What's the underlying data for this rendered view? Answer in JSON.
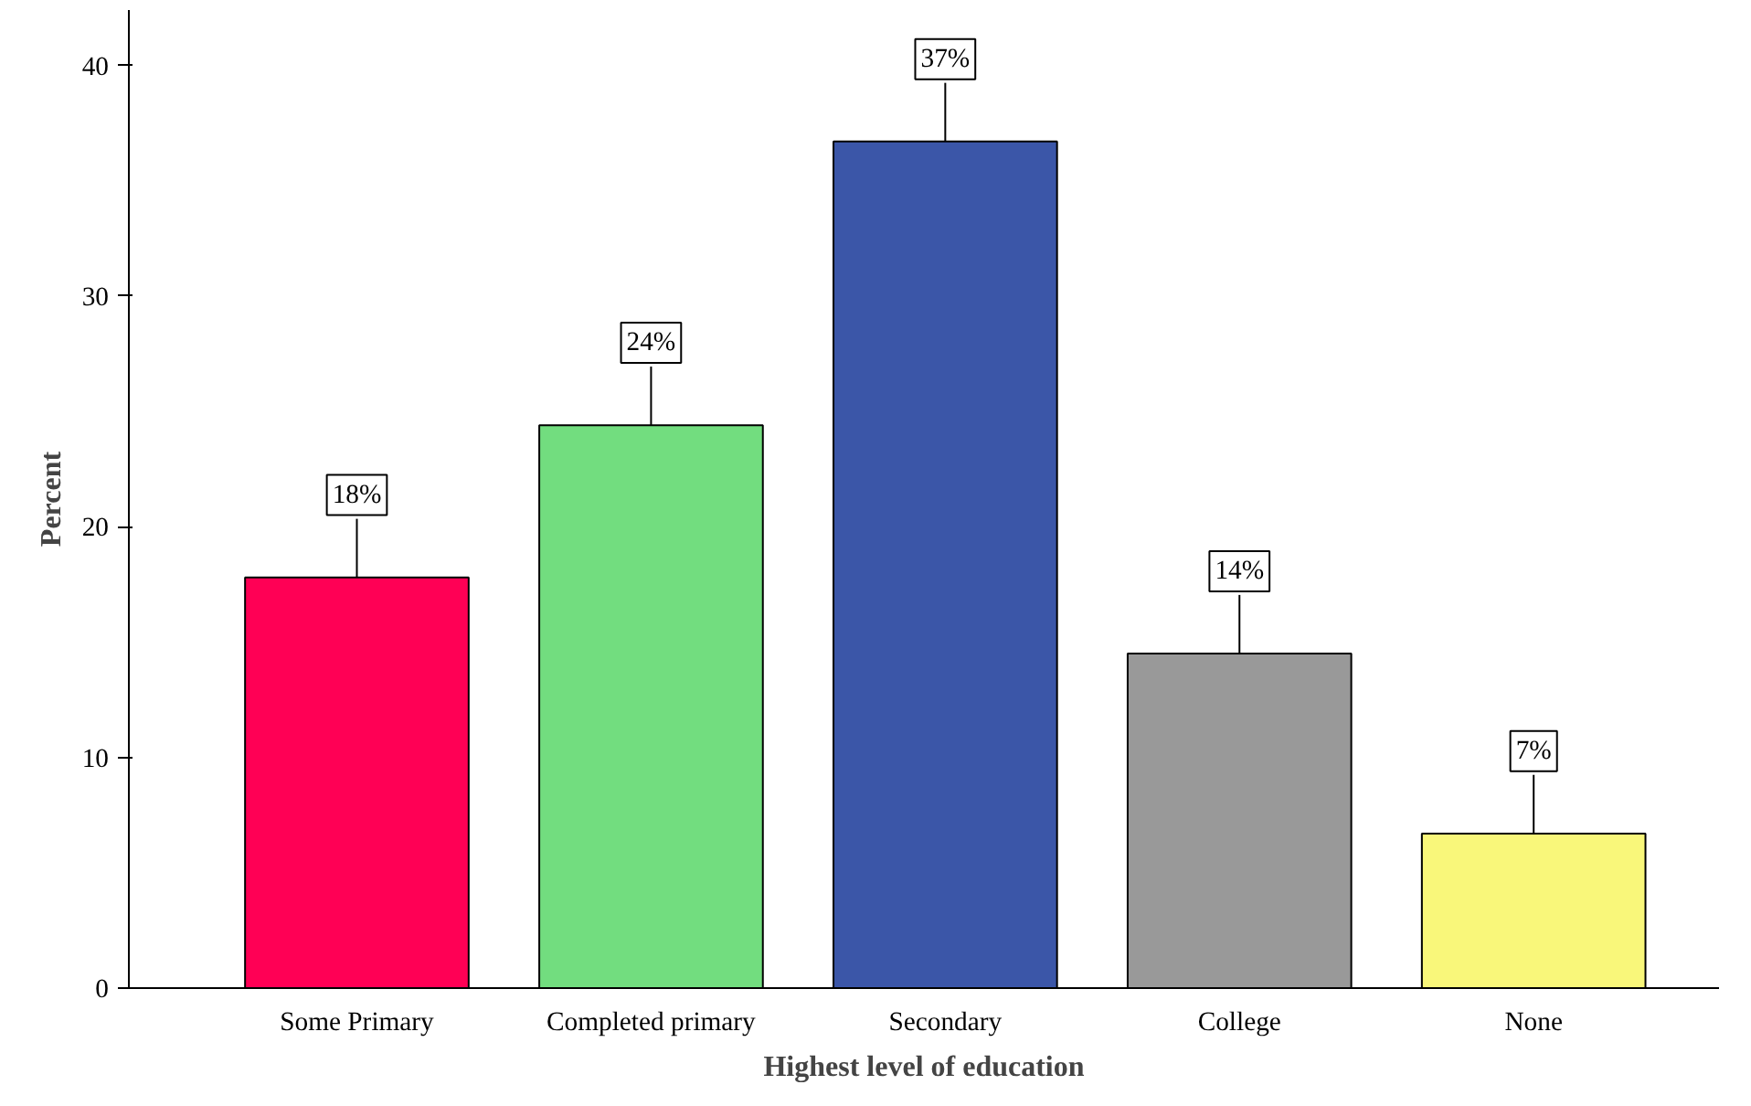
{
  "chart_data": {
    "type": "bar",
    "xlabel": "Highest level of education",
    "ylabel": "Percent",
    "categories": [
      "Some Primary",
      "Completed primary",
      "Secondary",
      "College",
      "None"
    ],
    "values": [
      17.8,
      24.4,
      36.7,
      14.5,
      6.7
    ],
    "colors": [
      "#ff0055",
      "#72dd7f",
      "#3b56a8",
      "#999999",
      "#f9f77a"
    ],
    "value_labels": [
      "18%",
      "24%",
      "37%",
      "14%",
      "7%"
    ],
    "ylim": [
      0,
      42.4
    ],
    "yticks": [
      0,
      10,
      20,
      30,
      40
    ],
    "grid": false
  }
}
